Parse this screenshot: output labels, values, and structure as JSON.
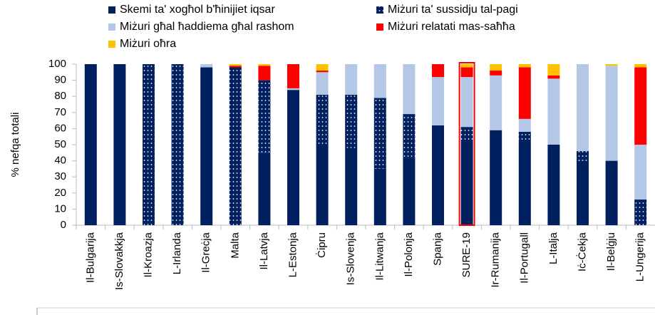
{
  "chart_data": {
    "type": "stacked_bar",
    "ylabel": "% nefqa totali",
    "categories": [
      "Il-Bulgarija",
      "Is-Slovakkja",
      "Il-Kroazja",
      "L-Irlanda",
      "Il-Greċja",
      "Malta",
      "Il-Latvja",
      "L-Estonja",
      "Ċipru",
      "Is-Slovenja",
      "Il-Litwanja",
      "Il-Polonja",
      "Spanja",
      "SURE-19",
      "Ir-Rumanija",
      "Il-Portugall",
      "L-Italja",
      "Iċ-Ċekja",
      "Il-Belġju",
      "L-Ungerija"
    ],
    "series": [
      {
        "name": "Skemi ta' xogħol b'ħinijiet iqsar",
        "color": "#002060",
        "values": [
          100,
          100,
          0,
          0,
          98,
          0,
          45,
          84,
          50,
          48,
          35,
          42,
          62,
          52,
          59,
          52,
          50,
          40,
          40,
          0
        ]
      },
      {
        "name": "Miżuri ta' sussidju tal-pagi",
        "color": "#002060",
        "pattern": "dots",
        "values": [
          0,
          0,
          100,
          100,
          0,
          98,
          45,
          0,
          31,
          33,
          44,
          27,
          0,
          9,
          0,
          6,
          0,
          6,
          0,
          16
        ]
      },
      {
        "name": "Miżuri għal ħaddiema għal rashom",
        "color": "#b4c7e7",
        "values": [
          0,
          0,
          0,
          0,
          2,
          0,
          0,
          1,
          14,
          19,
          21,
          31,
          30,
          31,
          34,
          8,
          41,
          54,
          59,
          34
        ]
      },
      {
        "name": "Miżuri relatati mas-saħħa",
        "color": "#ff0000",
        "values": [
          0,
          0,
          0,
          0,
          0,
          1,
          9,
          15,
          1,
          0,
          0,
          0,
          8,
          6,
          3,
          32,
          2,
          0,
          0,
          48
        ]
      },
      {
        "name": "Miżuri oħra",
        "color": "#ffc000",
        "values": [
          0,
          0,
          0,
          0,
          0,
          1,
          1,
          0,
          4,
          0,
          0,
          0,
          0,
          2,
          4,
          2,
          7,
          0,
          1,
          2
        ]
      }
    ],
    "ylim": [
      0,
      100
    ],
    "yticks": [
      0,
      10,
      20,
      30,
      40,
      50,
      60,
      70,
      80,
      90,
      100
    ]
  }
}
